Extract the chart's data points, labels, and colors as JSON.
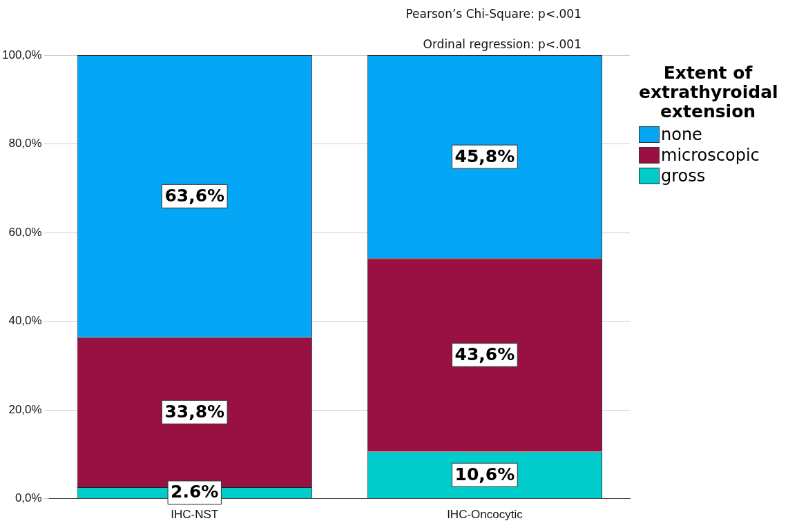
{
  "chart_data": {
    "type": "bar",
    "stacked": true,
    "categories": [
      "IHC-NST",
      "IHC-Oncocytic"
    ],
    "series": [
      {
        "name": "gross",
        "color": "#00cccc",
        "values": [
          2.6,
          10.6
        ],
        "value_labels": [
          "2.6%",
          "10,6%"
        ]
      },
      {
        "name": "microscopic",
        "color": "#991042",
        "values": [
          33.8,
          43.6
        ],
        "value_labels": [
          "33,8%",
          "43,6%"
        ]
      },
      {
        "name": "none",
        "color": "#05a6f6",
        "values": [
          63.6,
          45.8
        ],
        "value_labels": [
          "63,6%",
          "45,8%"
        ]
      }
    ],
    "ylim": [
      0,
      100
    ],
    "yticks": [
      {
        "value": 0,
        "label": "0,0%"
      },
      {
        "value": 20,
        "label": "20,0%"
      },
      {
        "value": 40,
        "label": "40,0%"
      },
      {
        "value": 60,
        "label": "60,0%"
      },
      {
        "value": 80,
        "label": "80,0%"
      },
      {
        "value": 100,
        "label": "100,0%"
      }
    ],
    "grid": "y",
    "legend": "right",
    "legend_title": "Extent of extrathyroidal extension",
    "annotations": [
      "Pearson’s Chi-Square: p<.001",
      "Ordinal regression: p<.001"
    ]
  }
}
